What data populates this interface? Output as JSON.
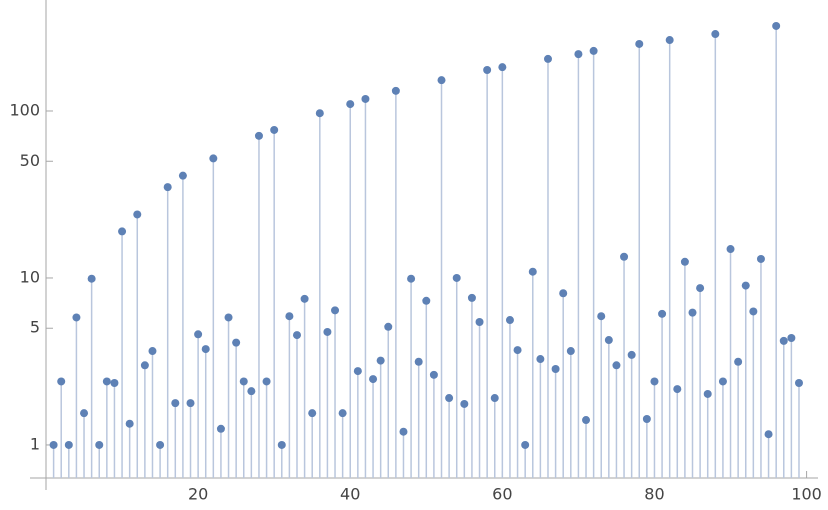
{
  "chart_data": {
    "type": "stem",
    "x": [
      1,
      2,
      3,
      4,
      5,
      6,
      7,
      8,
      9,
      10,
      11,
      12,
      13,
      14,
      15,
      16,
      17,
      18,
      19,
      20,
      21,
      22,
      23,
      24,
      25,
      26,
      27,
      28,
      29,
      30,
      31,
      32,
      33,
      34,
      35,
      36,
      37,
      38,
      39,
      40,
      41,
      42,
      43,
      44,
      45,
      46,
      47,
      48,
      49,
      50,
      51,
      52,
      53,
      54,
      55,
      56,
      57,
      58,
      59,
      60,
      61,
      62,
      63,
      64,
      65,
      66,
      67,
      68,
      69,
      70,
      71,
      72,
      73,
      74,
      75,
      76,
      77,
      78,
      79,
      80,
      81,
      82,
      83,
      84,
      85,
      86,
      87,
      88,
      89,
      90,
      91,
      92,
      93,
      94,
      95,
      96,
      97,
      98,
      99
    ],
    "values": [
      1,
      2.4,
      1,
      5.8,
      1.55,
      9.9,
      1,
      2.4,
      2.35,
      19,
      1.34,
      24,
      3,
      3.65,
      1,
      35,
      1.78,
      41,
      1.78,
      4.6,
      3.75,
      52,
      1.25,
      5.8,
      4.1,
      2.4,
      2.1,
      71,
      2.4,
      77,
      1,
      5.9,
      4.55,
      7.5,
      1.55,
      97,
      4.75,
      6.4,
      1.55,
      110,
      2.77,
      118,
      2.48,
      3.2,
      5.1,
      132,
      1.2,
      9.9,
      3.15,
      7.3,
      2.63,
      153,
      1.91,
      10,
      1.76,
      7.6,
      5.45,
      176,
      1.91,
      183,
      5.6,
      3.7,
      1,
      10.9,
      3.27,
      205,
      2.85,
      8.1,
      3.65,
      219,
      1.41,
      229,
      5.9,
      4.25,
      3,
      13.4,
      3.46,
      252,
      1.43,
      2.4,
      6.1,
      266,
      2.16,
      12.5,
      6.2,
      8.7,
      2.02,
      289,
      2.4,
      14.9,
      3.15,
      9,
      6.3,
      13,
      1.16,
      323,
      4.2,
      4.37,
      2.35
    ],
    "color": "#5e81b5",
    "stem_color": "#b9c6dd",
    "xlim": [
      0,
      101.5
    ],
    "xticks": [
      20,
      40,
      60,
      80,
      100
    ],
    "ylim": [
      0.634,
      462
    ],
    "yticks": [
      1,
      5,
      10,
      50,
      100
    ],
    "log_y": true
  }
}
